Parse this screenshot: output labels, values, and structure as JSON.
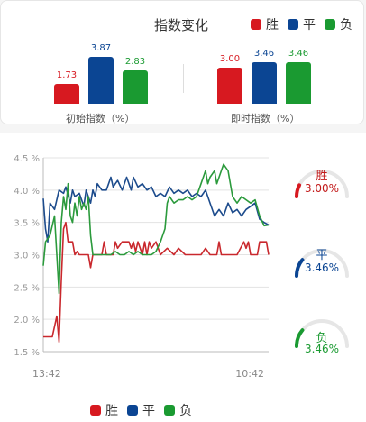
{
  "header": {
    "title": "指数变化"
  },
  "legend": [
    {
      "label": "胜",
      "color": "#d71920"
    },
    {
      "label": "平",
      "color": "#0b4593"
    },
    {
      "label": "负",
      "color": "#1a9a31"
    }
  ],
  "groups": [
    {
      "label": "初始指数（%）",
      "values": [
        {
          "value": 1.73,
          "label": "1.73"
        },
        {
          "value": 3.87,
          "label": "3.87"
        },
        {
          "value": 2.83,
          "label": "2.83"
        }
      ]
    },
    {
      "label": "即时指数（%）",
      "values": [
        {
          "value": 3.0,
          "label": "3.00"
        },
        {
          "value": 3.46,
          "label": "3.46"
        },
        {
          "value": 3.46,
          "label": "3.46"
        }
      ]
    }
  ],
  "gauges": [
    {
      "label": "胜",
      "value_text": "3.00%",
      "color": "#d71920",
      "text_color": "#c21a1a",
      "fraction": 0.15
    },
    {
      "label": "平",
      "value_text": "3.46%",
      "color": "#0b4593",
      "text_color": "#0b4593",
      "fraction": 0.22
    },
    {
      "label": "负",
      "value_text": "3.46%",
      "color": "#1a9a31",
      "text_color": "#1a9a31",
      "fraction": 0.22
    }
  ],
  "chart_data": {
    "type": "line",
    "ylim": [
      1.5,
      4.5
    ],
    "yticks": [
      "1.5 %",
      "2.0 %",
      "2.5 %",
      "3.0 %",
      "3.5 %",
      "4.0 %",
      "4.5 %"
    ],
    "ytick_values": [
      1.5,
      2.0,
      2.5,
      3.0,
      3.5,
      4.0,
      4.5
    ],
    "xlabels": [
      "13:42",
      "10:42"
    ],
    "xlim": [
      0,
      100
    ],
    "series": [
      {
        "name": "胜",
        "color": "#c9282d",
        "points": [
          [
            0,
            1.73
          ],
          [
            4,
            1.73
          ],
          [
            6,
            2.05
          ],
          [
            7,
            1.65
          ],
          [
            8,
            2.6
          ],
          [
            9,
            3.4
          ],
          [
            10,
            3.5
          ],
          [
            11,
            3.2
          ],
          [
            13,
            3.2
          ],
          [
            14,
            3.0
          ],
          [
            15,
            3.05
          ],
          [
            16,
            3.0
          ],
          [
            20,
            3.0
          ],
          [
            21,
            2.8
          ],
          [
            22,
            3.0
          ],
          [
            26,
            3.0
          ],
          [
            27,
            3.2
          ],
          [
            28,
            3.0
          ],
          [
            31,
            3.0
          ],
          [
            32,
            3.2
          ],
          [
            33,
            3.1
          ],
          [
            35,
            3.2
          ],
          [
            38,
            3.2
          ],
          [
            39,
            3.1
          ],
          [
            40,
            3.2
          ],
          [
            41,
            3.05
          ],
          [
            42,
            3.2
          ],
          [
            44,
            3.0
          ],
          [
            45,
            3.2
          ],
          [
            46,
            3.0
          ],
          [
            47,
            3.2
          ],
          [
            48,
            3.1
          ],
          [
            50,
            3.2
          ],
          [
            52,
            3.0
          ],
          [
            55,
            3.1
          ],
          [
            58,
            3.0
          ],
          [
            60,
            3.1
          ],
          [
            63,
            3.0
          ],
          [
            66,
            3.0
          ],
          [
            70,
            3.0
          ],
          [
            72,
            3.1
          ],
          [
            74,
            3.0
          ],
          [
            77,
            3.0
          ],
          [
            78,
            3.2
          ],
          [
            79,
            3.0
          ],
          [
            82,
            3.0
          ],
          [
            84,
            3.0
          ],
          [
            86,
            3.0
          ],
          [
            89,
            3.2
          ],
          [
            90,
            3.1
          ],
          [
            91,
            3.2
          ],
          [
            92,
            3.0
          ],
          [
            95,
            3.0
          ],
          [
            96,
            3.2
          ],
          [
            99,
            3.2
          ],
          [
            100,
            3.0
          ]
        ]
      },
      {
        "name": "平",
        "color": "#1c4b8c",
        "points": [
          [
            0,
            3.87
          ],
          [
            1,
            3.4
          ],
          [
            2,
            3.2
          ],
          [
            3,
            3.8
          ],
          [
            5,
            3.7
          ],
          [
            6,
            3.85
          ],
          [
            7,
            4.0
          ],
          [
            9,
            3.95
          ],
          [
            10,
            4.05
          ],
          [
            12,
            3.8
          ],
          [
            13,
            4.0
          ],
          [
            14,
            3.9
          ],
          [
            16,
            3.95
          ],
          [
            18,
            3.75
          ],
          [
            19,
            4.0
          ],
          [
            21,
            3.8
          ],
          [
            22,
            4.0
          ],
          [
            23,
            3.9
          ],
          [
            24,
            4.1
          ],
          [
            26,
            4.0
          ],
          [
            28,
            4.0
          ],
          [
            30,
            4.2
          ],
          [
            31,
            4.05
          ],
          [
            33,
            4.15
          ],
          [
            35,
            4.0
          ],
          [
            37,
            4.2
          ],
          [
            39,
            4.0
          ],
          [
            40,
            4.2
          ],
          [
            42,
            4.05
          ],
          [
            44,
            4.1
          ],
          [
            46,
            4.0
          ],
          [
            48,
            4.05
          ],
          [
            50,
            3.9
          ],
          [
            52,
            3.95
          ],
          [
            54,
            3.9
          ],
          [
            56,
            4.05
          ],
          [
            58,
            3.95
          ],
          [
            60,
            4.0
          ],
          [
            62,
            3.95
          ],
          [
            64,
            4.0
          ],
          [
            66,
            3.9
          ],
          [
            68,
            3.95
          ],
          [
            70,
            3.9
          ],
          [
            72,
            4.0
          ],
          [
            74,
            3.8
          ],
          [
            76,
            3.6
          ],
          [
            78,
            3.7
          ],
          [
            80,
            3.6
          ],
          [
            82,
            3.8
          ],
          [
            84,
            3.65
          ],
          [
            86,
            3.7
          ],
          [
            88,
            3.6
          ],
          [
            90,
            3.7
          ],
          [
            92,
            3.75
          ],
          [
            94,
            3.8
          ],
          [
            96,
            3.55
          ],
          [
            98,
            3.5
          ],
          [
            100,
            3.46
          ]
        ]
      },
      {
        "name": "负",
        "color": "#2b9a3c",
        "points": [
          [
            0,
            2.83
          ],
          [
            1,
            3.2
          ],
          [
            3,
            3.3
          ],
          [
            5,
            3.6
          ],
          [
            6,
            3.0
          ],
          [
            7,
            2.4
          ],
          [
            8,
            3.5
          ],
          [
            9,
            3.9
          ],
          [
            10,
            3.7
          ],
          [
            11,
            4.1
          ],
          [
            12,
            3.6
          ],
          [
            13,
            3.5
          ],
          [
            14,
            3.8
          ],
          [
            15,
            3.6
          ],
          [
            16,
            3.9
          ],
          [
            17,
            3.7
          ],
          [
            18,
            3.8
          ],
          [
            19,
            3.7
          ],
          [
            20,
            3.9
          ],
          [
            21,
            3.3
          ],
          [
            22,
            3.0
          ],
          [
            24,
            3.0
          ],
          [
            26,
            3.0
          ],
          [
            28,
            3.0
          ],
          [
            30,
            3.0
          ],
          [
            32,
            3.05
          ],
          [
            34,
            3.0
          ],
          [
            36,
            3.0
          ],
          [
            38,
            3.05
          ],
          [
            40,
            3.0
          ],
          [
            42,
            3.05
          ],
          [
            44,
            3.0
          ],
          [
            46,
            3.0
          ],
          [
            48,
            3.0
          ],
          [
            50,
            3.05
          ],
          [
            52,
            3.2
          ],
          [
            54,
            3.4
          ],
          [
            55,
            3.8
          ],
          [
            56,
            3.9
          ],
          [
            58,
            3.8
          ],
          [
            60,
            3.85
          ],
          [
            62,
            3.85
          ],
          [
            64,
            3.9
          ],
          [
            66,
            3.85
          ],
          [
            68,
            3.9
          ],
          [
            70,
            4.1
          ],
          [
            72,
            4.3
          ],
          [
            73,
            4.1
          ],
          [
            74,
            4.2
          ],
          [
            76,
            4.3
          ],
          [
            77,
            4.1
          ],
          [
            79,
            4.3
          ],
          [
            80,
            4.4
          ],
          [
            82,
            4.3
          ],
          [
            84,
            3.9
          ],
          [
            86,
            3.8
          ],
          [
            88,
            3.9
          ],
          [
            90,
            3.85
          ],
          [
            92,
            3.8
          ],
          [
            94,
            3.85
          ],
          [
            96,
            3.6
          ],
          [
            98,
            3.45
          ],
          [
            100,
            3.46
          ]
        ]
      }
    ]
  }
}
